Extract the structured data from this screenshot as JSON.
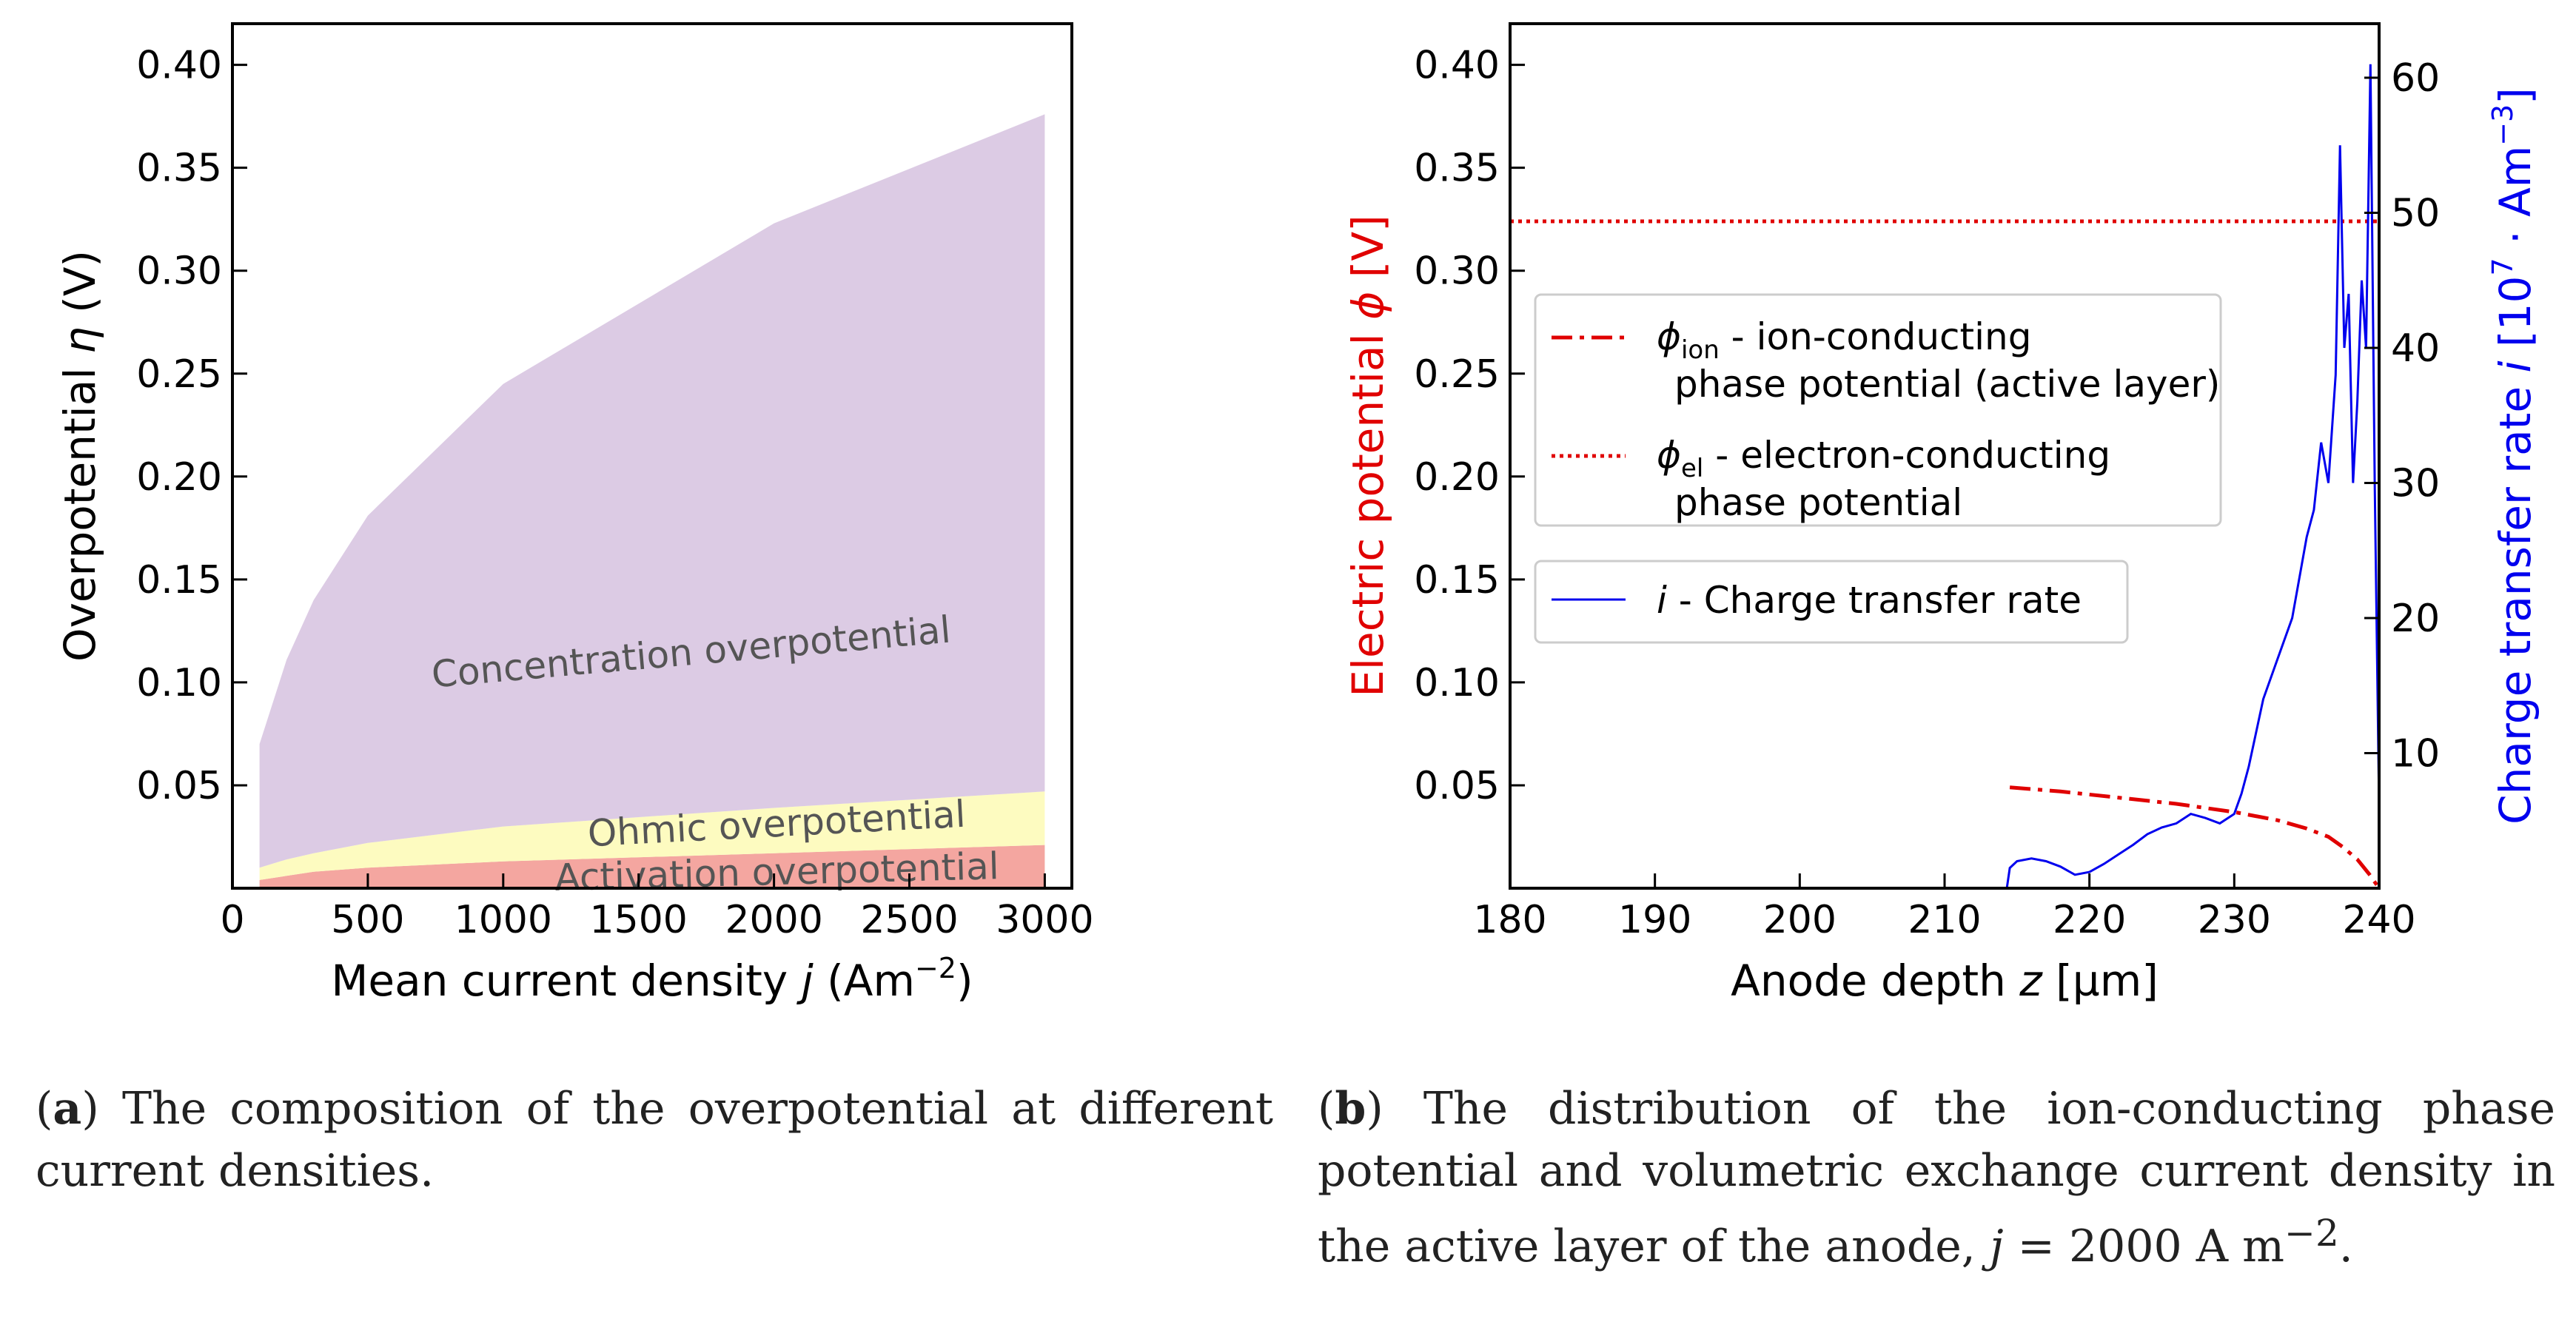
{
  "chart_data": [
    {
      "type": "area",
      "stacked": true,
      "panel": "a",
      "xlabel": "Mean current density j (Am⁻²)",
      "xlabel_parts": {
        "text": "Mean current density ",
        "var": "j",
        "unit": " (Am",
        "exp": "−2",
        "close": ")"
      },
      "ylabel": "Overpotential η (V)",
      "ylabel_parts": {
        "text": "Overpotential ",
        "var": "η",
        "unit": " (V)"
      },
      "xlim": [
        0,
        3100
      ],
      "ylim": [
        0,
        0.42
      ],
      "xticks": [
        0,
        500,
        1000,
        1500,
        2000,
        2500,
        3000
      ],
      "yticks": [
        0.05,
        0.1,
        0.15,
        0.2,
        0.25,
        0.3,
        0.35,
        0.4
      ],
      "xtick_labels": [
        "0",
        "500",
        "1000",
        "1500",
        "2000",
        "2500",
        "3000"
      ],
      "ytick_labels": [
        "0.05",
        "0.10",
        "0.15",
        "0.20",
        "0.25",
        "0.30",
        "0.35",
        "0.40"
      ],
      "x": [
        100,
        200,
        300,
        500,
        1000,
        2000,
        3000
      ],
      "series": [
        {
          "name": "Activation overpotential",
          "color": "#f4a6a0",
          "values": [
            0.004,
            0.006,
            0.008,
            0.01,
            0.013,
            0.017,
            0.021
          ]
        },
        {
          "name": "Ohmic overpotential",
          "color": "#fdfbc0",
          "values": [
            0.006,
            0.008,
            0.009,
            0.012,
            0.017,
            0.022,
            0.026
          ]
        },
        {
          "name": "Concentration overpotential",
          "color": "#dccbe4",
          "values": [
            0.06,
            0.097,
            0.123,
            0.159,
            0.215,
            0.284,
            0.329
          ]
        }
      ],
      "annotations": [
        "Concentration overpotential",
        "Ohmic overpotential",
        "Activation overpotential"
      ]
    },
    {
      "type": "line",
      "panel": "b",
      "xlabel": "Anode depth z [µm]",
      "xlabel_parts": {
        "text": "Anode depth ",
        "var": "z",
        "unit": " [µm]"
      },
      "ylabel": "Electric potential ϕ [V]",
      "ylabel_parts": {
        "text": "Electric potential ",
        "var": "ϕ",
        "unit": " [V]"
      },
      "ylabel_color": "#e00000",
      "y2label": "Charge transfer rate i [10⁷ · Am⁻³]",
      "y2label_parts": {
        "text": "Charge transfer rate ",
        "var": "i",
        "unit": " [10",
        "exp": "7",
        "rest": " · Am",
        "exp2": "−3",
        "close": "]"
      },
      "y2label_color": "#0000ee",
      "xlim": [
        180,
        240
      ],
      "ylim": [
        0,
        0.42
      ],
      "y2lim": [
        0,
        64
      ],
      "xticks": [
        180,
        190,
        200,
        210,
        220,
        230,
        240
      ],
      "xtick_labels": [
        "180",
        "190",
        "200",
        "210",
        "220",
        "230",
        "240"
      ],
      "yticks": [
        0.05,
        0.1,
        0.15,
        0.2,
        0.25,
        0.3,
        0.35,
        0.4
      ],
      "ytick_labels": [
        "0.05",
        "0.10",
        "0.15",
        "0.20",
        "0.25",
        "0.30",
        "0.35",
        "0.40"
      ],
      "y2ticks": [
        10,
        20,
        30,
        40,
        50,
        60
      ],
      "y2tick_labels": [
        "10",
        "20",
        "30",
        "40",
        "50",
        "60"
      ],
      "series": [
        {
          "name": "ϕion - ion-conducting phase potential (active layer)",
          "axis": "left",
          "color": "#e00000",
          "style": "dashdot",
          "x": [
            214.5,
            218,
            222,
            226,
            230,
            233,
            235,
            236.5,
            237.5,
            238.5,
            239.3,
            240
          ],
          "y": [
            0.049,
            0.047,
            0.044,
            0.041,
            0.037,
            0.033,
            0.029,
            0.025,
            0.02,
            0.014,
            0.007,
            0.0
          ]
        },
        {
          "name": "ϕel - electron-conducting phase potential",
          "axis": "left",
          "color": "#e00000",
          "style": "dotted",
          "x": [
            180,
            240
          ],
          "y": [
            0.324,
            0.324
          ]
        },
        {
          "name": "i - Charge transfer rate",
          "axis": "right",
          "color": "#0000ee",
          "style": "solid",
          "x": [
            214.3,
            214.5,
            215,
            216,
            217,
            218,
            219,
            220,
            221,
            222,
            223,
            224,
            225,
            226,
            227,
            228,
            229,
            230,
            230.5,
            231,
            232,
            233,
            234,
            235,
            235.5,
            236,
            236.5,
            237,
            237.3,
            237.6,
            237.9,
            238.2,
            238.5,
            238.8,
            239.1,
            239.4,
            239.7,
            240
          ],
          "y": [
            0.0,
            1.5,
            2.0,
            2.2,
            2.0,
            1.6,
            1.0,
            1.2,
            1.8,
            2.5,
            3.2,
            4.0,
            4.5,
            4.8,
            5.5,
            5.2,
            4.8,
            5.5,
            7.0,
            9.0,
            14.0,
            17.0,
            20.0,
            26.0,
            28.0,
            33.0,
            30.0,
            38.0,
            55.0,
            40.0,
            44.0,
            30.0,
            36.0,
            45.0,
            40.0,
            61.0,
            30.0,
            6.0
          ]
        }
      ],
      "legend": {
        "placement": "center-left",
        "entries": [
          {
            "sym": "ϕ",
            "sub": "ion",
            "line1": " - ion-conducting",
            "line2": "phase potential (active layer)"
          },
          {
            "sym": "ϕ",
            "sub": "el",
            "line1": " - electron-conducting",
            "line2": "phase potential"
          }
        ],
        "entry3": {
          "sym": "i",
          "text": " - Charge transfer rate"
        }
      }
    }
  ],
  "captions": {
    "a": {
      "label": "a",
      "text": " The composition of the overpotential at different current densities."
    },
    "b": {
      "label": "b",
      "text": " The distribution of the ion-conducting phase potential and volumetric exchange current density in the active layer of the anode, ",
      "math": "j",
      "eq": " = 2000 A m",
      "exp": "−2",
      "end": "."
    }
  }
}
